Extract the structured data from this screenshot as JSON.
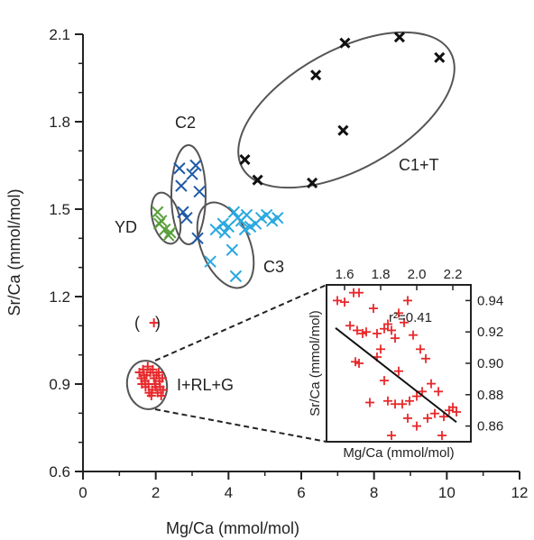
{
  "colors": {
    "axis": "#222222",
    "ellipse": "#555555",
    "black_marker": "#111111",
    "navy_marker": "#1f5aa6",
    "cyan_marker": "#29a8e0",
    "green_marker": "#5aa03c",
    "red_marker": "#e8282a",
    "regression": "#111111"
  },
  "chart_data": [
    {
      "type": "scatter",
      "xlabel": "Mg/Ca (mmol/mol)",
      "ylabel": "Sr/Ca (mmol/mol)",
      "xlim": [
        0,
        12
      ],
      "ylim": [
        0.6,
        2.1
      ],
      "xticks": [
        0,
        2,
        4,
        6,
        8,
        10,
        12
      ],
      "xticks_minor": [
        1,
        3,
        5,
        7,
        9,
        11
      ],
      "yticks": [
        0.6,
        0.9,
        1.2,
        1.5,
        1.8,
        2.1
      ],
      "yticks_minor": [
        0.7,
        0.8,
        1.0,
        1.1,
        1.3,
        1.4,
        1.6,
        1.7,
        1.9,
        2.0
      ],
      "grid": false,
      "series": [
        {
          "name": "C1+T",
          "marker": "x",
          "color": "#111111",
          "points": [
            [
              4.45,
              1.67
            ],
            [
              4.8,
              1.6
            ],
            [
              6.3,
              1.59
            ],
            [
              6.4,
              1.96
            ],
            [
              7.15,
              1.77
            ],
            [
              7.2,
              2.07
            ],
            [
              8.7,
              2.09
            ],
            [
              9.8,
              2.02
            ]
          ]
        },
        {
          "name": "C2",
          "marker": "x",
          "color": "#1f5aa6",
          "points": [
            [
              2.65,
              1.64
            ],
            [
              2.7,
              1.58
            ],
            [
              2.75,
              1.49
            ],
            [
              2.85,
              1.47
            ],
            [
              3.1,
              1.65
            ],
            [
              3.15,
              1.4
            ],
            [
              3.2,
              1.56
            ],
            [
              3.0,
              1.62
            ]
          ]
        },
        {
          "name": "C3",
          "marker": "x",
          "color": "#29a8e0",
          "points": [
            [
              3.5,
              1.32
            ],
            [
              3.65,
              1.43
            ],
            [
              3.85,
              1.45
            ],
            [
              4.0,
              1.44
            ],
            [
              4.1,
              1.36
            ],
            [
              4.2,
              1.27
            ],
            [
              4.25,
              1.47
            ],
            [
              4.35,
              1.46
            ],
            [
              4.5,
              1.48
            ],
            [
              4.6,
              1.44
            ],
            [
              4.75,
              1.45
            ],
            [
              4.9,
              1.47
            ],
            [
              5.05,
              1.48
            ],
            [
              5.2,
              1.46
            ],
            [
              5.35,
              1.47
            ],
            [
              4.15,
              1.49
            ],
            [
              4.45,
              1.43
            ],
            [
              3.9,
              1.42
            ]
          ]
        },
        {
          "name": "YD",
          "marker": "x",
          "color": "#5aa03c",
          "points": [
            [
              2.05,
              1.49
            ],
            [
              2.15,
              1.46
            ],
            [
              2.25,
              1.43
            ],
            [
              2.4,
              1.42
            ],
            [
              2.35,
              1.41
            ],
            [
              2.1,
              1.45
            ]
          ]
        },
        {
          "name": "I+RL+G",
          "marker": "+",
          "color": "#e8282a",
          "points": [
            [
              1.55,
              0.94
            ],
            [
              1.6,
              0.92
            ],
            [
              1.65,
              0.95
            ],
            [
              1.7,
              0.91
            ],
            [
              1.75,
              0.93
            ],
            [
              1.8,
              0.9
            ],
            [
              1.85,
              0.94
            ],
            [
              1.9,
              0.88
            ],
            [
              1.95,
              0.92
            ],
            [
              2.0,
              0.89
            ],
            [
              2.05,
              0.87
            ],
            [
              2.1,
              0.91
            ],
            [
              2.15,
              0.86
            ],
            [
              2.2,
              0.88
            ],
            [
              1.72,
              0.89
            ],
            [
              1.82,
              0.87
            ],
            [
              1.92,
              0.95
            ],
            [
              2.02,
              0.93
            ],
            [
              1.62,
              0.9
            ],
            [
              2.12,
              0.89
            ],
            [
              1.88,
              0.86
            ],
            [
              1.78,
              0.96
            ],
            [
              1.98,
              0.9
            ],
            [
              2.08,
              0.94
            ],
            [
              1.68,
              0.93
            ],
            [
              2.18,
              0.92
            ]
          ]
        },
        {
          "name": "(+)",
          "marker": "+",
          "color": "#e8282a",
          "points": [
            [
              1.95,
              1.11
            ]
          ]
        }
      ],
      "annotations": [
        "C1+T",
        "C2",
        "C3",
        "YD",
        "I+RL+G",
        "(",
        ")"
      ]
    },
    {
      "type": "scatter",
      "role": "inset",
      "xlabel": "Mg/Ca (mmol/mol)",
      "ylabel": "Sr/Ca (mmol/mol)",
      "xlim": [
        1.5,
        2.3
      ],
      "ylim": [
        0.85,
        0.95
      ],
      "xticks": [
        1.6,
        1.8,
        2.0,
        2.2
      ],
      "yticks": [
        0.86,
        0.88,
        0.9,
        0.92,
        0.94
      ],
      "annotation": "r²=0.41",
      "regression": [
        [
          1.55,
          0.9225
        ],
        [
          2.22,
          0.8625
        ]
      ],
      "series": [
        {
          "name": "I+RL+G",
          "marker": "+",
          "color": "#e8282a",
          "points": [
            [
              1.56,
              0.94
            ],
            [
              1.6,
              0.939
            ],
            [
              1.65,
              0.945
            ],
            [
              1.68,
              0.945
            ],
            [
              1.63,
              0.924
            ],
            [
              1.67,
              0.921
            ],
            [
              1.66,
              0.901
            ],
            [
              1.68,
              0.9
            ],
            [
              1.7,
              0.919
            ],
            [
              1.72,
              0.92
            ],
            [
              1.76,
              0.935
            ],
            [
              1.78,
              0.919
            ],
            [
              1.8,
              0.909
            ],
            [
              1.82,
              0.922
            ],
            [
              1.84,
              0.925
            ],
            [
              1.86,
              0.921
            ],
            [
              1.88,
              0.916
            ],
            [
              1.9,
              0.932
            ],
            [
              1.93,
              0.926
            ],
            [
              1.95,
              0.94
            ],
            [
              1.78,
              0.904
            ],
            [
              1.82,
              0.889
            ],
            [
              1.74,
              0.875
            ],
            [
              1.84,
              0.876
            ],
            [
              1.88,
              0.874
            ],
            [
              1.92,
              0.874
            ],
            [
              1.96,
              0.876
            ],
            [
              2.0,
              0.879
            ],
            [
              1.98,
              0.918
            ],
            [
              2.02,
              0.909
            ],
            [
              2.05,
              0.903
            ],
            [
              2.08,
              0.887
            ],
            [
              2.12,
              0.882
            ],
            [
              2.15,
              0.866
            ],
            [
              2.18,
              0.87
            ],
            [
              2.2,
              0.872
            ],
            [
              2.22,
              0.869
            ],
            [
              1.9,
              0.895
            ],
            [
              2.03,
              0.882
            ],
            [
              1.86,
              0.854
            ],
            [
              1.95,
              0.865
            ],
            [
              2.06,
              0.865
            ],
            [
              2.0,
              0.86
            ],
            [
              2.14,
              0.854
            ],
            [
              2.1,
              0.868
            ]
          ]
        }
      ]
    }
  ]
}
